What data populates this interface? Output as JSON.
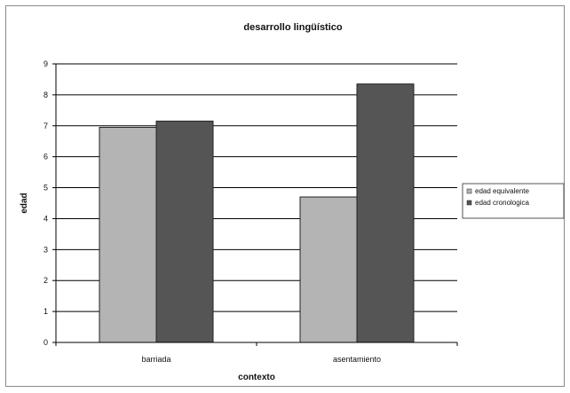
{
  "chart_data": {
    "type": "bar",
    "title": "desarrollo lingüístico",
    "xlabel": "contexto",
    "ylabel": "edad",
    "ylim": [
      0,
      9
    ],
    "yticks": [
      "0",
      "1",
      "2",
      "3",
      "4",
      "5",
      "6",
      "7",
      "8",
      "9"
    ],
    "categories": [
      "barriada",
      "asentamiento"
    ],
    "series": [
      {
        "name": "edad equivalente",
        "values": [
          6.95,
          4.7
        ],
        "color": "#b4b4b4"
      },
      {
        "name": "edad cronologica",
        "values": [
          7.15,
          8.35
        ],
        "color": "#555555"
      }
    ],
    "grid": true,
    "legend": "right",
    "plot_background": "#ffffff",
    "grid_color": "#000000"
  }
}
